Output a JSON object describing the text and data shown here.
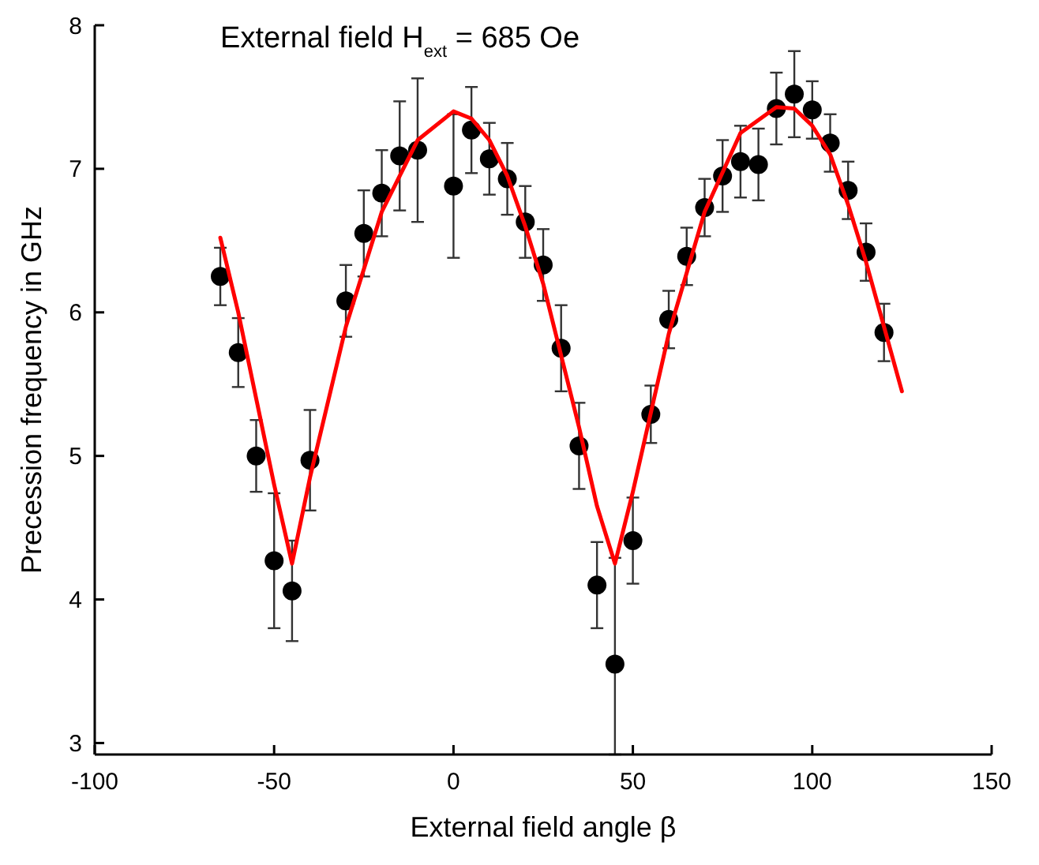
{
  "chart_data": {
    "type": "scatter",
    "title": "External field H$_{ext}$ = 685 Oe",
    "xlabel": "External field angle β",
    "ylabel": "Precession frequency in GHz",
    "xlim": [
      -100,
      150
    ],
    "ylim": [
      2.92,
      8
    ],
    "xticks": [
      -100,
      -50,
      0,
      50,
      100,
      150
    ],
    "yticks": [
      3,
      4,
      5,
      6,
      7,
      8
    ],
    "grid": false,
    "series": [
      {
        "color": "#000000",
        "marker": "circle",
        "x": [
          -65,
          -60,
          -55,
          -50,
          -45,
          -40,
          -30,
          -25,
          -20,
          -15,
          -10,
          0,
          5,
          10,
          15,
          20,
          25,
          30,
          35,
          40,
          45,
          50,
          55,
          60,
          65,
          70,
          75,
          80,
          85,
          90,
          95,
          100,
          105,
          110,
          115,
          120
        ],
        "values": [
          6.25,
          5.72,
          5.0,
          4.27,
          4.06,
          4.97,
          6.08,
          6.55,
          6.83,
          7.09,
          7.13,
          6.88,
          7.27,
          7.07,
          6.93,
          6.63,
          6.33,
          5.75,
          5.07,
          4.1,
          3.55,
          4.41,
          5.29,
          5.95,
          6.39,
          6.73,
          6.95,
          7.05,
          7.03,
          7.42,
          7.52,
          7.41,
          7.18,
          6.85,
          6.42,
          5.86
        ],
        "errors": [
          0.2,
          0.24,
          0.25,
          0.47,
          0.35,
          0.35,
          0.25,
          0.3,
          0.3,
          0.38,
          0.5,
          0.5,
          0.3,
          0.25,
          0.25,
          0.25,
          0.25,
          0.3,
          0.3,
          0.3,
          [
            2.92,
            4.29
          ],
          0.3,
          0.2,
          0.2,
          0.2,
          0.2,
          0.25,
          0.25,
          0.25,
          0.25,
          0.3,
          0.2,
          0.2,
          0.2,
          0.2,
          0.2
        ]
      },
      {
        "type": "line",
        "color": "#ff0000",
        "marker": "none",
        "line_style": "solid",
        "x": [
          -65,
          -60,
          -55,
          -50,
          -45,
          -40,
          -30,
          -20,
          -10,
          0,
          5,
          10,
          15,
          20,
          25,
          30,
          35,
          40,
          45,
          50,
          55,
          60,
          70,
          80,
          90,
          95,
          100,
          105,
          110,
          115,
          120,
          125
        ],
        "values": [
          6.52,
          6.0,
          5.4,
          4.8,
          4.25,
          4.85,
          5.9,
          6.7,
          7.2,
          7.4,
          7.35,
          7.2,
          6.95,
          6.6,
          6.2,
          5.7,
          5.2,
          4.65,
          4.25,
          4.75,
          5.3,
          5.85,
          6.7,
          7.25,
          7.43,
          7.42,
          7.3,
          7.1,
          6.75,
          6.35,
          5.9,
          5.45
        ]
      }
    ]
  }
}
